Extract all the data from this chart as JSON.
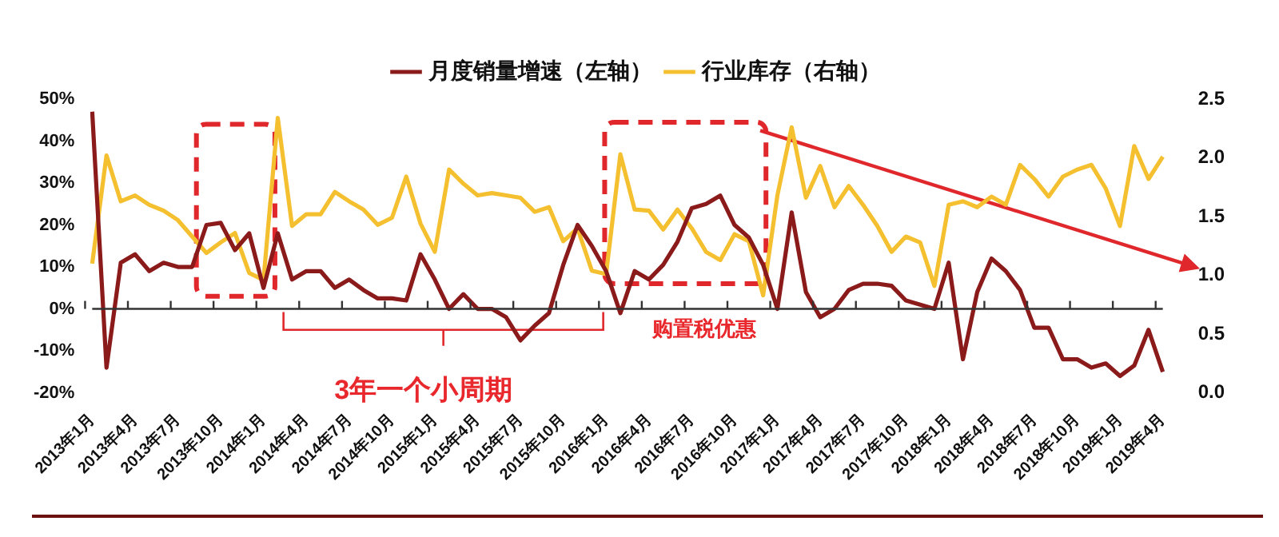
{
  "chart_data": {
    "type": "line",
    "legend": "top",
    "marker": "none",
    "categories": [
      "2013年1月",
      null,
      null,
      "2013年4月",
      null,
      null,
      "2013年7月",
      null,
      null,
      "2013年10月",
      null,
      null,
      "2014年1月",
      null,
      null,
      "2014年4月",
      null,
      null,
      "2014年7月",
      null,
      null,
      "2014年10月",
      null,
      null,
      "2015年1月",
      null,
      null,
      "2015年4月",
      null,
      null,
      "2015年7月",
      null,
      null,
      "2015年10月",
      null,
      null,
      "2016年1月",
      null,
      null,
      "2016年4月",
      null,
      null,
      "2016年7月",
      null,
      null,
      "2016年10月",
      null,
      null,
      "2017年1月",
      null,
      null,
      "2017年4月",
      null,
      null,
      "2017年7月",
      null,
      null,
      "2017年10月",
      null,
      null,
      "2018年1月",
      null,
      null,
      "2018年4月",
      null,
      null,
      "2018年7月",
      null,
      null,
      "2018年10月",
      null,
      null,
      "2019年1月",
      null,
      null,
      "2019年4月"
    ],
    "series": [
      {
        "name": "月度销量增速（左轴）",
        "color": "#8b1a1a",
        "values": [
          47,
          -14,
          11,
          13,
          9,
          11,
          10,
          10,
          20,
          20.5,
          14,
          18,
          5,
          18,
          7,
          9,
          9,
          5,
          7,
          4.5,
          2.5,
          2.5,
          2,
          13,
          7,
          0,
          3.5,
          0,
          0,
          -2,
          -7.5,
          -4,
          -1,
          10.5,
          20,
          15,
          9,
          -1,
          9,
          7,
          10.5,
          16,
          24,
          25,
          27,
          20,
          17,
          10.5,
          0,
          23,
          4,
          -2,
          0,
          4.5,
          6,
          6,
          5.5,
          2,
          1,
          0,
          11,
          -12,
          4,
          12,
          9,
          4.5,
          -4.5,
          -4.5,
          -12,
          -12,
          -14,
          -13,
          -16,
          -13.5,
          -5,
          -15
        ]
      },
      {
        "name": "行业库存（右轴）",
        "color": "#f5c030",
        "axis": "y2",
        "values": [
          1.1,
          2.02,
          1.63,
          1.68,
          1.6,
          1.55,
          1.47,
          1.33,
          1.19,
          1.28,
          1.36,
          1.02,
          0.96,
          2.34,
          1.42,
          1.52,
          1.52,
          1.71,
          1.63,
          1.56,
          1.43,
          1.49,
          1.84,
          1.44,
          1.2,
          1.9,
          1.78,
          1.68,
          1.7,
          1.68,
          1.66,
          1.54,
          1.58,
          1.29,
          1.4,
          1.04,
          1.01,
          2.03,
          1.56,
          1.55,
          1.39,
          1.56,
          1.4,
          1.2,
          1.13,
          1.35,
          1.29,
          0.83,
          1.68,
          2.26,
          1.66,
          1.93,
          1.58,
          1.76,
          1.6,
          1.42,
          1.2,
          1.33,
          1.28,
          0.91,
          1.6,
          1.63,
          1.58,
          1.67,
          1.6,
          1.94,
          1.82,
          1.67,
          1.84,
          1.9,
          1.94,
          1.74,
          1.42,
          2.1,
          1.82,
          2.01
        ]
      }
    ],
    "ylim": [
      -20,
      50
    ],
    "yticks": [
      {
        "value": -20,
        "label": "-20%"
      },
      {
        "value": -10,
        "label": "-10%"
      },
      {
        "value": 0,
        "label": "0%"
      },
      {
        "value": 10,
        "label": "10%"
      },
      {
        "value": 20,
        "label": "20%"
      },
      {
        "value": 30,
        "label": "30%"
      },
      {
        "value": 40,
        "label": "40%"
      },
      {
        "value": 50,
        "label": "50%"
      }
    ],
    "y2lim": [
      0,
      2.5
    ],
    "y2ticks": [
      {
        "value": 0,
        "label": "0.0"
      },
      0.5,
      {
        "value": 1,
        "label": "1.0"
      },
      1.5,
      {
        "value": 2,
        "label": "2.0"
      },
      2.5
    ],
    "annotations": [
      "3年一个小周期",
      "购置税优惠"
    ]
  }
}
